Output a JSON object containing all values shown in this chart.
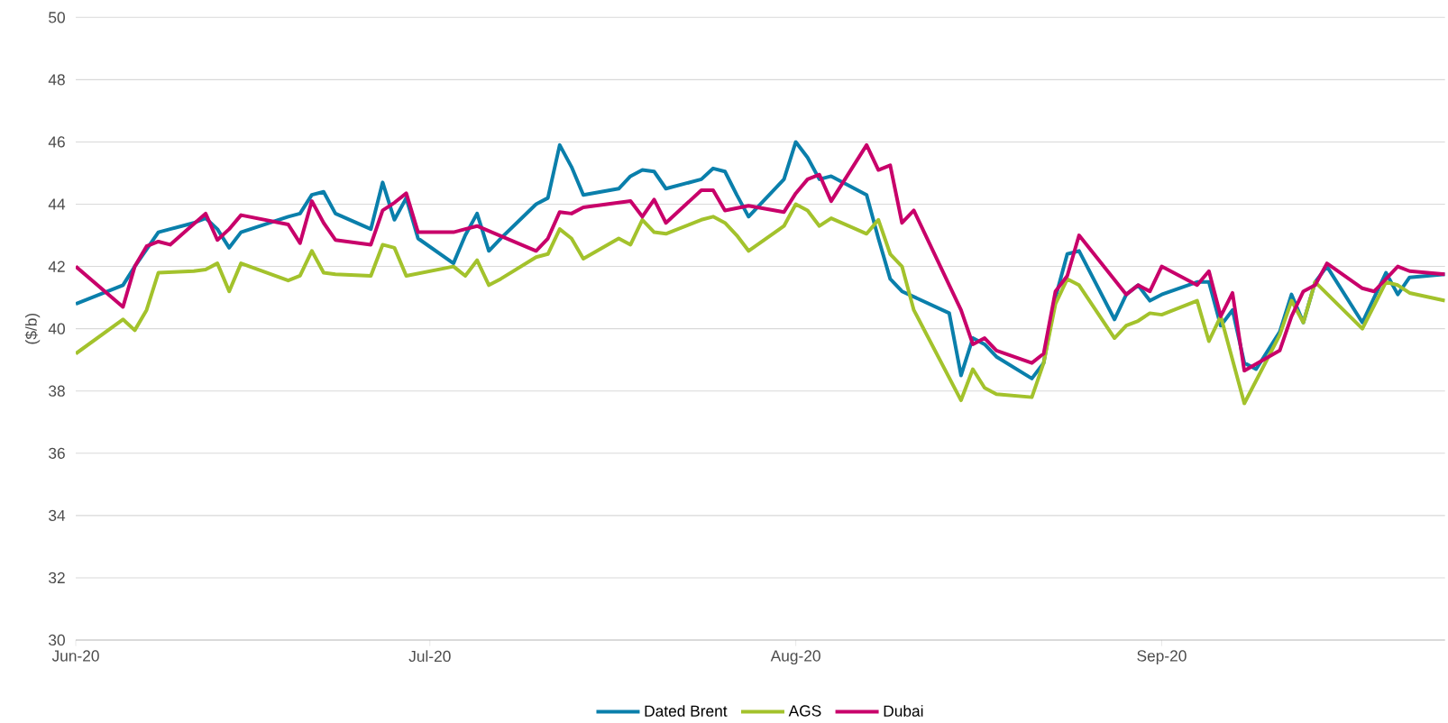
{
  "chart_data": {
    "type": "line",
    "ylabel": "($/b)",
    "xlim": [
      "2020-06-01",
      "2020-09-25"
    ],
    "xticks": [
      {
        "value": "2020-06-01",
        "label": "Jun-20"
      },
      {
        "value": "2020-07-01",
        "label": "Jul-20"
      },
      {
        "value": "2020-08-01",
        "label": "Aug-20"
      },
      {
        "value": "2020-09-01",
        "label": "Sep-20"
      }
    ],
    "ylim": [
      30,
      50
    ],
    "yticks": [
      30,
      32,
      34,
      36,
      38,
      40,
      42,
      44,
      46,
      48,
      50
    ],
    "grid": "y",
    "legend": "bottom",
    "line_style": "solid",
    "series": [
      {
        "name": "Dated Brent",
        "color": "#0a7fab",
        "x": [
          "2020-06-01",
          "2020-06-05",
          "2020-06-06",
          "2020-06-08",
          "2020-06-09",
          "2020-06-11",
          "2020-06-12",
          "2020-06-13",
          "2020-06-14",
          "2020-06-15",
          "2020-06-19",
          "2020-06-20",
          "2020-06-21",
          "2020-06-22",
          "2020-06-23",
          "2020-06-26",
          "2020-06-27",
          "2020-06-28",
          "2020-06-29",
          "2020-06-30",
          "2020-07-03",
          "2020-07-04",
          "2020-07-05",
          "2020-07-06",
          "2020-07-07",
          "2020-07-10",
          "2020-07-11",
          "2020-07-12",
          "2020-07-13",
          "2020-07-14",
          "2020-07-17",
          "2020-07-18",
          "2020-07-19",
          "2020-07-20",
          "2020-07-21",
          "2020-07-24",
          "2020-07-25",
          "2020-07-26",
          "2020-07-27",
          "2020-07-28",
          "2020-07-31",
          "2020-08-01",
          "2020-08-02",
          "2020-08-03",
          "2020-08-04",
          "2020-08-07",
          "2020-08-08",
          "2020-08-09",
          "2020-08-10",
          "2020-08-14",
          "2020-08-15",
          "2020-08-16",
          "2020-08-17",
          "2020-08-18",
          "2020-08-21",
          "2020-08-22",
          "2020-08-23",
          "2020-08-24",
          "2020-08-25",
          "2020-08-28",
          "2020-08-29",
          "2020-08-30",
          "2020-08-31",
          "2020-09-01",
          "2020-09-04",
          "2020-09-05",
          "2020-09-06",
          "2020-09-07",
          "2020-09-08",
          "2020-09-09",
          "2020-09-11",
          "2020-09-12",
          "2020-09-13",
          "2020-09-14",
          "2020-09-15",
          "2020-09-18",
          "2020-09-19",
          "2020-09-20",
          "2020-09-21",
          "2020-09-22",
          "2020-09-25"
        ],
        "values": [
          40.8,
          41.4,
          42.0,
          43.1,
          43.2,
          43.4,
          43.55,
          43.2,
          42.6,
          43.1,
          43.6,
          43.7,
          44.3,
          44.4,
          43.7,
          43.2,
          44.7,
          43.5,
          44.2,
          42.9,
          42.1,
          43.0,
          43.7,
          42.5,
          42.9,
          44.0,
          44.2,
          45.9,
          45.2,
          44.3,
          44.5,
          44.9,
          45.1,
          45.05,
          44.5,
          44.8,
          45.15,
          45.05,
          44.3,
          43.6,
          44.8,
          46.0,
          45.5,
          44.8,
          44.9,
          44.3,
          42.9,
          41.6,
          41.2,
          40.5,
          38.5,
          39.7,
          39.5,
          39.1,
          38.4,
          38.9,
          41.0,
          42.4,
          42.5,
          40.3,
          41.1,
          41.4,
          40.9,
          41.1,
          41.5,
          41.5,
          40.1,
          40.6,
          38.9,
          38.7,
          39.9,
          41.1,
          40.2,
          41.5,
          42.0,
          40.2,
          41.0,
          41.8,
          41.1,
          41.65,
          41.75
        ]
      },
      {
        "name": "AGS",
        "color": "#a3c22c",
        "x": [
          "2020-06-01",
          "2020-06-05",
          "2020-06-06",
          "2020-06-07",
          "2020-06-08",
          "2020-06-11",
          "2020-06-12",
          "2020-06-13",
          "2020-06-14",
          "2020-06-15",
          "2020-06-19",
          "2020-06-20",
          "2020-06-21",
          "2020-06-22",
          "2020-06-23",
          "2020-06-26",
          "2020-06-27",
          "2020-06-28",
          "2020-06-29",
          "2020-07-03",
          "2020-07-04",
          "2020-07-05",
          "2020-07-06",
          "2020-07-07",
          "2020-07-10",
          "2020-07-11",
          "2020-07-12",
          "2020-07-13",
          "2020-07-14",
          "2020-07-17",
          "2020-07-18",
          "2020-07-19",
          "2020-07-20",
          "2020-07-21",
          "2020-07-24",
          "2020-07-25",
          "2020-07-26",
          "2020-07-27",
          "2020-07-28",
          "2020-07-31",
          "2020-08-01",
          "2020-08-02",
          "2020-08-03",
          "2020-08-04",
          "2020-08-07",
          "2020-08-08",
          "2020-08-09",
          "2020-08-10",
          "2020-08-11",
          "2020-08-15",
          "2020-08-16",
          "2020-08-17",
          "2020-08-18",
          "2020-08-21",
          "2020-08-22",
          "2020-08-23",
          "2020-08-24",
          "2020-08-25",
          "2020-08-28",
          "2020-08-29",
          "2020-08-30",
          "2020-08-31",
          "2020-09-01",
          "2020-09-04",
          "2020-09-05",
          "2020-09-06",
          "2020-09-08",
          "2020-09-11",
          "2020-09-12",
          "2020-09-13",
          "2020-09-14",
          "2020-09-18",
          "2020-09-20",
          "2020-09-21",
          "2020-09-22",
          "2020-09-25"
        ],
        "values": [
          39.2,
          40.3,
          39.95,
          40.6,
          41.8,
          41.85,
          41.9,
          42.1,
          41.2,
          42.1,
          41.55,
          41.7,
          42.5,
          41.8,
          41.75,
          41.7,
          42.7,
          42.6,
          41.7,
          42.0,
          41.7,
          42.2,
          41.4,
          41.6,
          42.3,
          42.4,
          43.2,
          42.9,
          42.25,
          42.9,
          42.7,
          43.5,
          43.1,
          43.05,
          43.5,
          43.6,
          43.4,
          43.0,
          42.5,
          43.3,
          44.0,
          43.8,
          43.3,
          43.55,
          43.05,
          43.5,
          42.4,
          42.0,
          40.6,
          37.7,
          38.7,
          38.1,
          37.9,
          37.8,
          38.9,
          40.8,
          41.6,
          41.4,
          39.7,
          40.1,
          40.25,
          40.5,
          40.45,
          40.9,
          39.6,
          40.4,
          37.6,
          39.8,
          40.9,
          40.2,
          41.5,
          40.0,
          41.5,
          41.4,
          41.15,
          40.9
        ]
      },
      {
        "name": "Dubai",
        "color": "#c8006a",
        "x": [
          "2020-06-01",
          "2020-06-05",
          "2020-06-06",
          "2020-06-07",
          "2020-06-08",
          "2020-06-09",
          "2020-06-12",
          "2020-06-13",
          "2020-06-14",
          "2020-06-15",
          "2020-06-19",
          "2020-06-20",
          "2020-06-21",
          "2020-06-22",
          "2020-06-23",
          "2020-06-26",
          "2020-06-27",
          "2020-06-28",
          "2020-06-29",
          "2020-06-30",
          "2020-07-03",
          "2020-07-05",
          "2020-07-10",
          "2020-07-11",
          "2020-07-12",
          "2020-07-13",
          "2020-07-14",
          "2020-07-17",
          "2020-07-18",
          "2020-07-19",
          "2020-07-20",
          "2020-07-21",
          "2020-07-24",
          "2020-07-25",
          "2020-07-26",
          "2020-07-28",
          "2020-07-31",
          "2020-08-01",
          "2020-08-02",
          "2020-08-03",
          "2020-08-04",
          "2020-08-07",
          "2020-08-08",
          "2020-08-09",
          "2020-08-10",
          "2020-08-11",
          "2020-08-15",
          "2020-08-16",
          "2020-08-17",
          "2020-08-18",
          "2020-08-21",
          "2020-08-22",
          "2020-08-23",
          "2020-08-24",
          "2020-08-25",
          "2020-08-29",
          "2020-08-30",
          "2020-08-31",
          "2020-09-01",
          "2020-09-04",
          "2020-09-05",
          "2020-09-06",
          "2020-09-07",
          "2020-09-08",
          "2020-09-11",
          "2020-09-12",
          "2020-09-13",
          "2020-09-14",
          "2020-09-15",
          "2020-09-18",
          "2020-09-19",
          "2020-09-21",
          "2020-09-22",
          "2020-09-25"
        ],
        "values": [
          42.0,
          40.7,
          42.0,
          42.65,
          42.8,
          42.7,
          43.7,
          42.85,
          43.2,
          43.65,
          43.35,
          42.75,
          44.1,
          43.4,
          42.85,
          42.7,
          43.8,
          44.05,
          44.35,
          43.1,
          43.1,
          43.3,
          42.5,
          42.9,
          43.75,
          43.7,
          43.9,
          44.05,
          44.1,
          43.6,
          44.15,
          43.4,
          44.45,
          44.45,
          43.8,
          43.95,
          43.75,
          44.35,
          44.8,
          44.95,
          44.1,
          45.9,
          45.1,
          45.25,
          43.4,
          43.8,
          40.6,
          39.5,
          39.7,
          39.3,
          38.9,
          39.2,
          41.2,
          41.7,
          43.0,
          41.1,
          41.4,
          41.2,
          42.0,
          41.4,
          41.85,
          40.4,
          41.15,
          38.65,
          39.3,
          40.4,
          41.2,
          41.4,
          42.1,
          41.3,
          41.2,
          42.0,
          41.85,
          41.75
        ]
      }
    ]
  }
}
